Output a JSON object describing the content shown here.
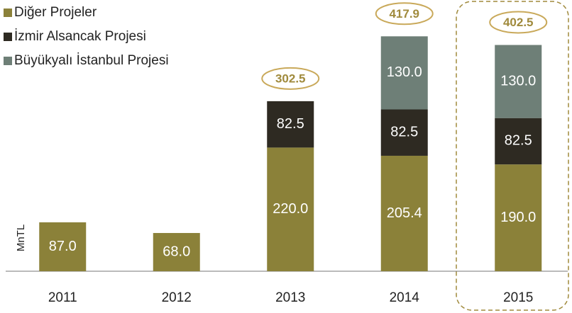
{
  "chart_data": {
    "type": "stacked_bar",
    "y_label": "MnTL",
    "categories": [
      "2011",
      "2012",
      "2013",
      "2014",
      "2015"
    ],
    "series": [
      {
        "name": "Diğer Projeler",
        "color": "#8b8139",
        "values": [
          87.0,
          68.0,
          220.0,
          205.4,
          190.0
        ],
        "value_labels": [
          "87.0",
          "68.0",
          "220.0",
          "205.4",
          "190.0"
        ]
      },
      {
        "name": "İzmir Alsancak Projesi",
        "color": "#2e2a22",
        "values": [
          null,
          null,
          82.5,
          82.5,
          82.5
        ]
      },
      {
        "name": "Büyükyalı İstanbul Projesi",
        "color": "#6e7f77",
        "values": [
          null,
          null,
          null,
          130.0,
          130.0
        ],
        "value_labels": [
          null,
          null,
          null,
          "130.0",
          "130.0"
        ]
      }
    ],
    "totals": [
      null,
      null,
      302.5,
      417.9,
      402.5
    ],
    "ylim": [
      0,
      480
    ],
    "legend": "top-left"
  }
}
